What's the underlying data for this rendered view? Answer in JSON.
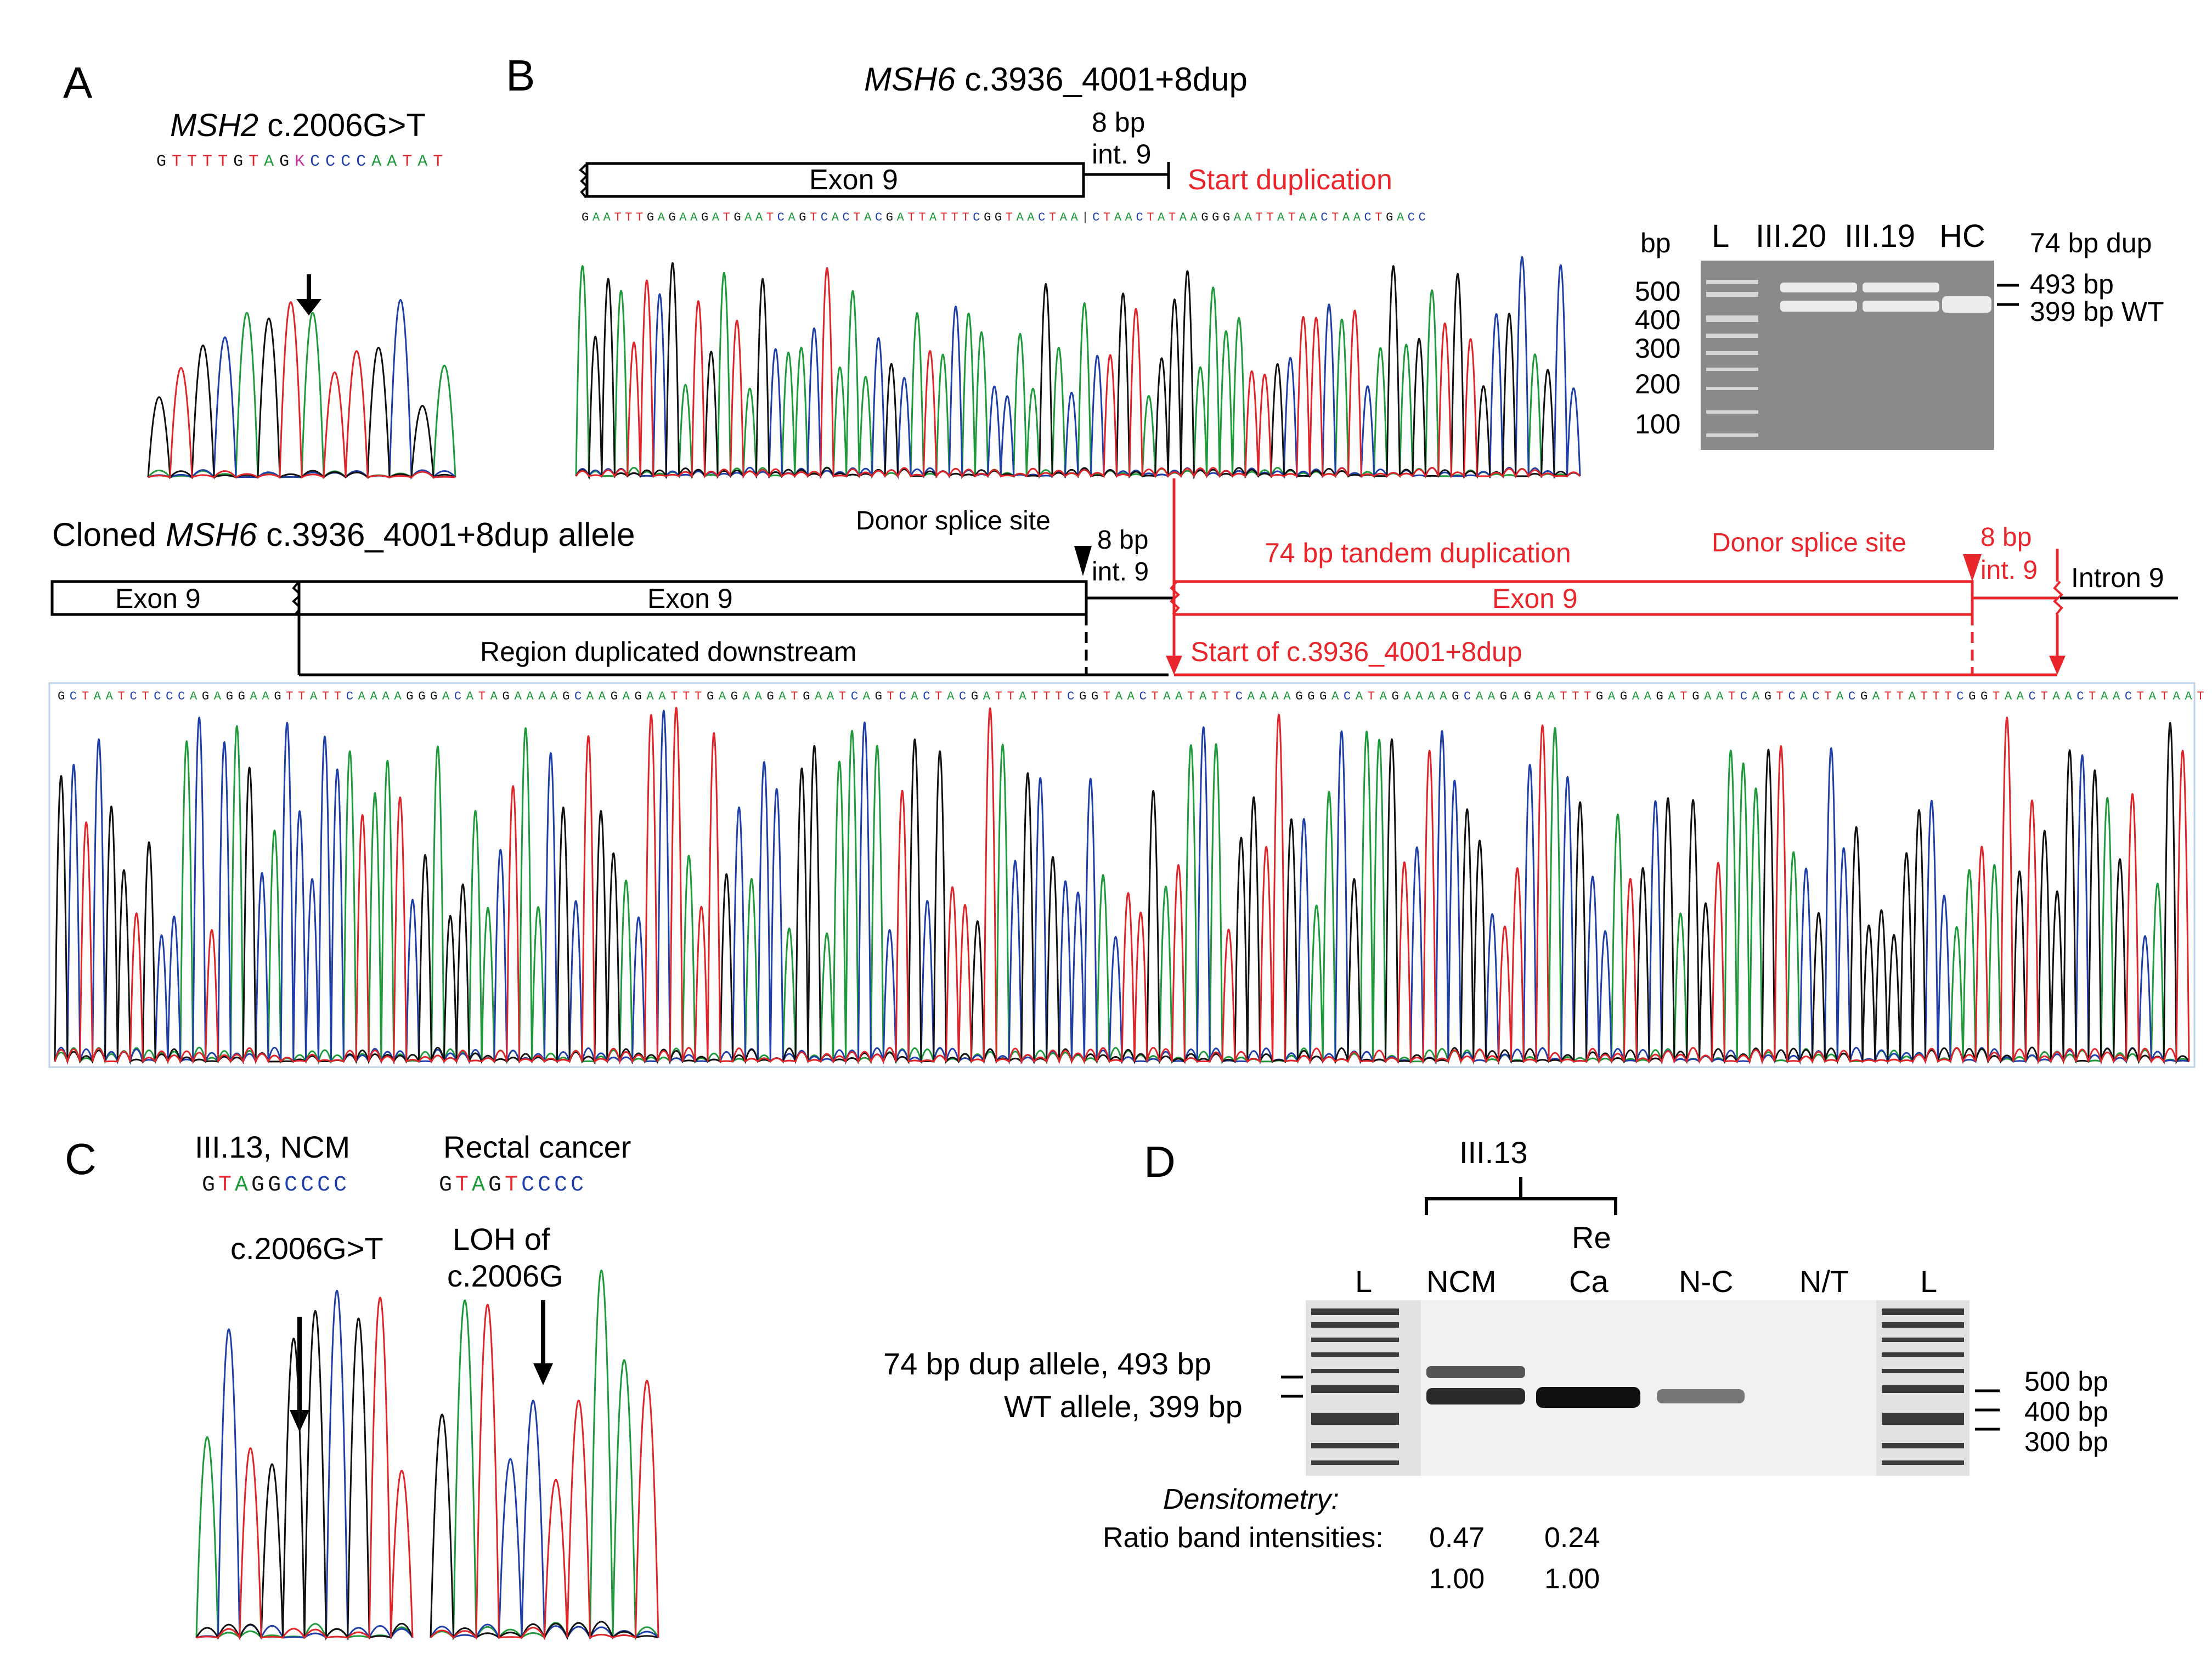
{
  "panels": {
    "a": "A",
    "b": "B",
    "c": "C",
    "d": "D"
  },
  "panel_a": {
    "variant_gene": "MSH2",
    "variant_change": " c.2006G>T",
    "sequence": "GTTTTGTAGKCCCCAATAT"
  },
  "panel_b": {
    "variant_gene": "MSH6",
    "variant_change": " c.3936_4001+8dup",
    "exon_label": "Exon 9",
    "intron_bp": "8 bp",
    "intron_name": "int. 9",
    "start_dup": "Start duplication",
    "sequence": "GAATTTGAGAAGATGAATCAGTCACTACGATTATTTCGGTAACTAA|CTAACTATAAGGGAATTATAACTAACTGACC",
    "gel": {
      "bp_header": "bp",
      "lanes": [
        "L",
        "III.20",
        "III.19",
        "HC"
      ],
      "ladder": [
        "500",
        "400",
        "300",
        "200",
        "100"
      ],
      "dup_header": "74 bp dup",
      "band_top": "493 bp",
      "band_bottom": "399 bp WT"
    }
  },
  "cloned": {
    "title_prefix": "Cloned ",
    "title_gene": "MSH6",
    "title_suffix": " c.3936_4001+8dup allele",
    "exon_left": "Exon 9",
    "exon_main": "Exon 9",
    "donor_site": "Donor splice site",
    "intron_bp": "8 bp",
    "intron_name": "int. 9",
    "tandem_dup": "74 bp tandem duplication",
    "donor_site_red": "Donor splice site",
    "intron_bp_red": "8 bp",
    "intron_name_red": "int. 9",
    "exon_red": "Exon 9",
    "intron_right": "Intron 9",
    "region_dup": "Region duplicated downstream",
    "start_of_dup": "Start of c.3936_4001+8dup",
    "sequence": "GCTAATCTCCCAGAGGAAGTTATTCAAAAGGGACATAGAAAAGCAAGAGAATTTGAGAAGATGAATCAGTCACTACGATTATTTCGGTAACTAATATTCAAAAGGGACATAGAAAAGCAAGAGAATTTGAGAAGATGAATCAGTCACTACGATTATTTCGGTAACTAACTAACTATAAT"
  },
  "panel_c": {
    "label_ncm": "III.13, NCM",
    "label_rc": "Rectal cancer",
    "seq_ncm": "GTAGGCCCC",
    "seq_rc": "GTAGTCCCC",
    "variant": "c.2006G>T",
    "loh_line1": "LOH of",
    "loh_line2": "c.2006G"
  },
  "panel_d": {
    "patient": "III.13",
    "re": "Re",
    "lanes": [
      "L",
      "NCM",
      "Ca",
      "N-C",
      "N/T",
      "L"
    ],
    "dup_allele": "74 bp dup allele, 493 bp",
    "wt_allele": "WT allele, 399 bp",
    "marker_500": "500 bp",
    "marker_400": "400 bp",
    "marker_300": "300 bp",
    "densitometry": "Densitometry:",
    "ratio_label": "Ratio band intensities:",
    "ncm_ratio_top": "0.47",
    "ncm_ratio_bottom": "1.00",
    "ca_ratio_top": "0.24",
    "ca_ratio_bottom": "1.00"
  },
  "colors": {
    "red": "#e8262c",
    "A": "#1e9a3b",
    "C": "#1f3fa8",
    "G": "#111111",
    "T": "#e0252a",
    "K": "#c4319b"
  }
}
